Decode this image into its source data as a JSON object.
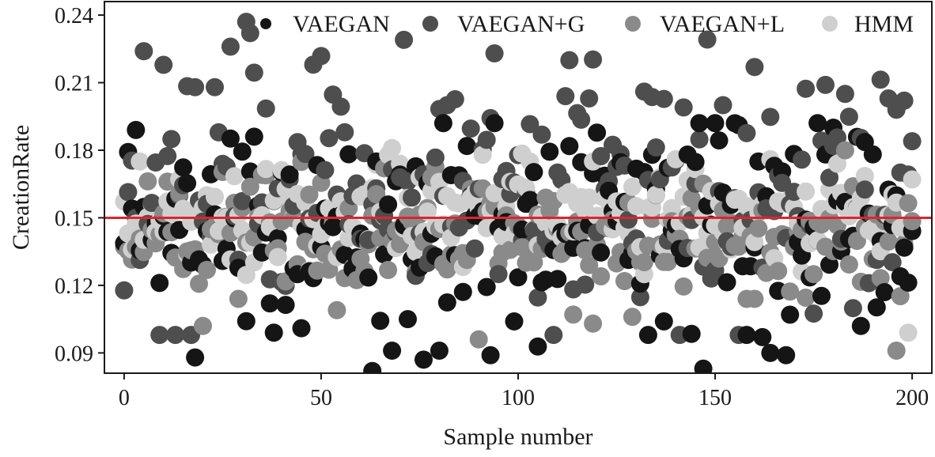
{
  "chart_data": {
    "type": "scatter",
    "title": "",
    "xlabel": "Sample number",
    "ylabel": "CreationRate",
    "xlim": [
      -5,
      205
    ],
    "ylim": [
      0.081,
      0.246
    ],
    "xticks": [
      0,
      50,
      100,
      150,
      200
    ],
    "yticks": [
      0.09,
      0.12,
      0.15,
      0.18,
      0.21,
      0.24
    ],
    "xtick_labels": [
      "0",
      "50",
      "100",
      "150",
      "200"
    ],
    "ytick_labels": [
      "0.09",
      "0.12",
      "0.15",
      "0.18",
      "0.21",
      "0.24"
    ],
    "reference_line": {
      "y": 0.15,
      "color": "#e0242b"
    },
    "legend_position": "top-right",
    "n_points_per_series": 201,
    "series": [
      {
        "name": "VAEGAN",
        "color": "#151515",
        "center": 0.15,
        "spread": 0.023,
        "min": 0.082,
        "max": 0.192,
        "highlights": [
          [
            3,
            0.189
          ],
          [
            18,
            0.088
          ],
          [
            37,
            0.112
          ],
          [
            38,
            0.099
          ],
          [
            44,
            0.125
          ],
          [
            63,
            0.082
          ],
          [
            68,
            0.091
          ],
          [
            72,
            0.105
          ],
          [
            76,
            0.087
          ],
          [
            80,
            0.091
          ],
          [
            93,
            0.089
          ],
          [
            99,
            0.104
          ],
          [
            133,
            0.098
          ],
          [
            137,
            0.104
          ],
          [
            147,
            0.083
          ],
          [
            158,
            0.098
          ],
          [
            162,
            0.097
          ],
          [
            164,
            0.09
          ],
          [
            168,
            0.089
          ],
          [
            180,
            0.19
          ],
          [
            187,
            0.102
          ],
          [
            193,
            0.117
          ],
          [
            197,
            0.124
          ]
        ]
      },
      {
        "name": "VAEGAN+G",
        "color": "#4e4e4e",
        "center": 0.16,
        "spread": 0.025,
        "min": 0.098,
        "max": 0.238,
        "highlights": [
          [
            5,
            0.224
          ],
          [
            18,
            0.208
          ],
          [
            23,
            0.208
          ],
          [
            27,
            0.226
          ],
          [
            31,
            0.237
          ],
          [
            32,
            0.232
          ],
          [
            48,
            0.218
          ],
          [
            71,
            0.229
          ],
          [
            82,
            0.2
          ],
          [
            94,
            0.223
          ],
          [
            112,
            0.204
          ],
          [
            113,
            0.22
          ],
          [
            118,
            0.203
          ],
          [
            132,
            0.206
          ],
          [
            142,
            0.199
          ],
          [
            152,
            0.2
          ],
          [
            178,
            0.209
          ],
          [
            183,
            0.205
          ],
          [
            194,
            0.203
          ],
          [
            196,
            0.198
          ],
          [
            198,
            0.202
          ],
          [
            200,
            0.184
          ]
        ]
      },
      {
        "name": "VAEGAN+L",
        "color": "#8a8a8a",
        "center": 0.142,
        "spread": 0.014,
        "min": 0.091,
        "max": 0.184,
        "highlights": [
          [
            20,
            0.102
          ],
          [
            29,
            0.114
          ],
          [
            90,
            0.096
          ],
          [
            119,
            0.103
          ],
          [
            129,
            0.106
          ],
          [
            158,
            0.114
          ],
          [
            160,
            0.114
          ],
          [
            196,
            0.091
          ]
        ]
      },
      {
        "name": "HMM",
        "color": "#cfcfcf",
        "center": 0.152,
        "spread": 0.011,
        "min": 0.098,
        "max": 0.181,
        "highlights": [
          [
            4,
            0.175
          ],
          [
            70,
            0.174
          ],
          [
            75,
            0.168
          ],
          [
            91,
            0.178
          ],
          [
            103,
            0.175
          ],
          [
            140,
            0.176
          ],
          [
            164,
            0.176
          ],
          [
            181,
            0.174
          ],
          [
            199,
            0.099
          ],
          [
            200,
            0.167
          ]
        ]
      }
    ]
  }
}
